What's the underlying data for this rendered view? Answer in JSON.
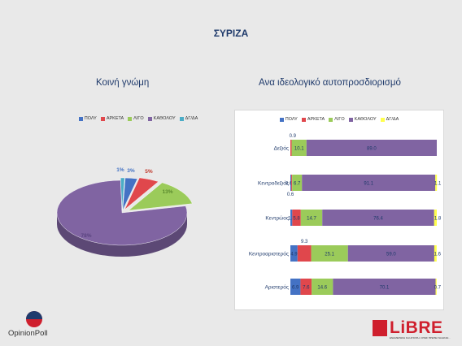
{
  "slide": {
    "title": "ΣΥΡΙΖΑ",
    "left_title": "Κοινή γνώμη",
    "right_title": "Ανα ιδεολογικό αυτοπροσδιορισμό"
  },
  "colors": {
    "poly": "#4472c4",
    "arketa": "#e0474c",
    "ligo": "#9bcb5a",
    "katholou": "#8064a2",
    "dgda": "#4bacc6",
    "dgda_bar": "#ffff4d"
  },
  "chart_data": [
    {
      "type": "pie",
      "title": "Κοινή γνώμη",
      "legend": [
        "ΠΟΛΥ",
        "ΑΡΚΕΤΑ",
        "ΛΙΓΟ",
        "ΚΑΘΟΛΟΥ",
        "ΔΓ/ΔΑ"
      ],
      "labels": [
        "ΠΟΛΥ",
        "ΑΡΚΕΤΑ",
        "ΛΙΓΟ",
        "ΚΑΘΟΛΟΥ",
        "ΔΓ/ΔΑ"
      ],
      "values": [
        3,
        5,
        13,
        78,
        1
      ],
      "data_labels": [
        "3%",
        "5%",
        "13%",
        "78%",
        "1%"
      ],
      "legend_position": "top"
    },
    {
      "type": "bar",
      "orientation": "horizontal-stacked",
      "title": "Ανα ιδεολογικό αυτοπροσδιορισμό",
      "legend_position": "top",
      "categories": [
        "Δεξιός",
        "Κεντροδεξιός",
        "Κεντρώος",
        "Κεντροαριστερός",
        "Αριστερός"
      ],
      "series": [
        {
          "name": "ΠΟΛΥ",
          "values": [
            0.0,
            0.6,
            1.3,
            4.9,
            6.9
          ],
          "labels": [
            "",
            "0.6",
            "1.3",
            "4.9",
            "6.9"
          ]
        },
        {
          "name": "ΑΡΚΕΤΑ",
          "values": [
            0.9,
            0.6,
            5.8,
            9.3,
            7.6
          ],
          "labels": [
            "0.9",
            "0.6",
            "5.8",
            "9.3",
            "7.6"
          ]
        },
        {
          "name": "ΛΙΓΟ",
          "values": [
            10.1,
            6.7,
            14.7,
            25.1,
            14.6
          ],
          "labels": [
            "10.1",
            "6.7",
            "14.7",
            "25.1",
            "14.6"
          ]
        },
        {
          "name": "ΚΑΘΟΛΟΥ",
          "values": [
            89.0,
            91.1,
            76.4,
            59.0,
            70.1
          ],
          "labels": [
            "89.0",
            "91.1",
            "76.4",
            "59.0",
            "70.1"
          ]
        },
        {
          "name": "ΔΓ/ΔΑ",
          "values": [
            0.0,
            1.1,
            1.8,
            1.6,
            0.7
          ],
          "labels": [
            "",
            "1.1",
            "1.8",
            "1.6",
            "0.7"
          ]
        }
      ],
      "xlim": [
        0,
        100
      ]
    }
  ],
  "logos": {
    "left_text": "OpinionPoll",
    "right_word": "LiBRE",
    "right_tagline": "ΕΝΗΜΕΡΩΣΗ ΚΑΙ ΑΠΟΨΗ. ΟΠΩΣ ΠΡΕΠΕΙ ΝΑ ΕΙΝΑΙ..."
  }
}
